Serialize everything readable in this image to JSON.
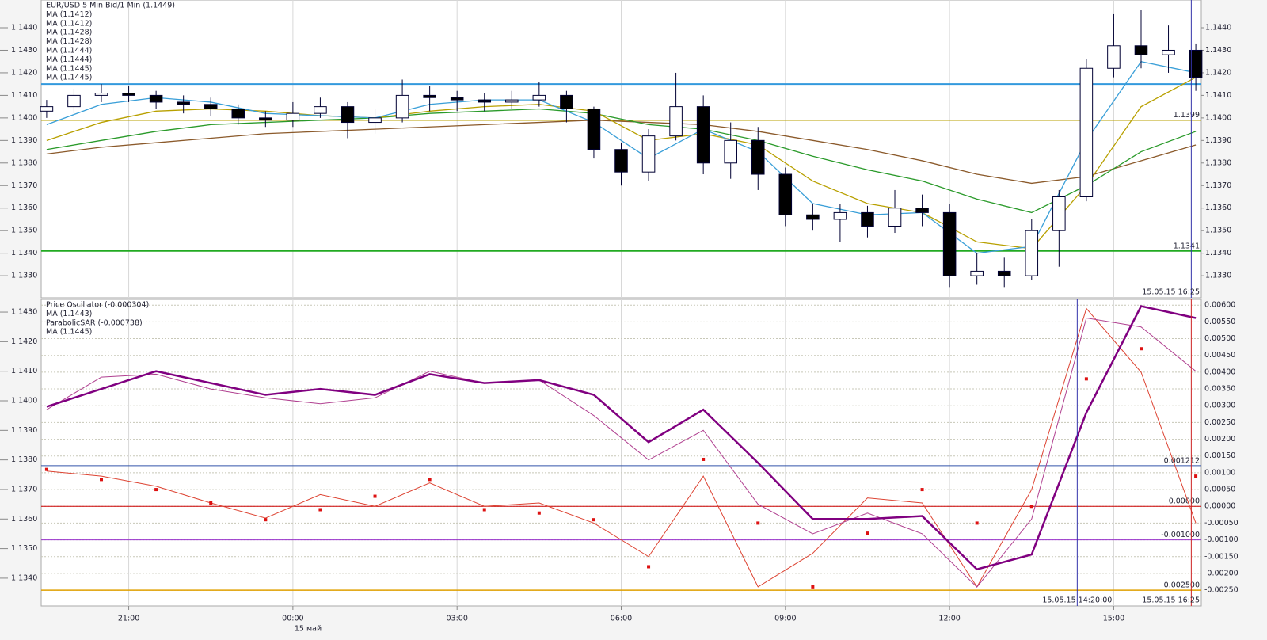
{
  "chart_data": [
    {
      "type": "candlestick",
      "legend": [
        {
          "text": "EUR/USD 5 Min Bid/1 Min (1.1449)",
          "color": "#000066"
        },
        {
          "text": "MA (1.1412)",
          "color": "#b03030"
        },
        {
          "text": "MA (1.1412)",
          "color": "#b06020"
        },
        {
          "text": "MA (1.1428)",
          "color": "#1f8f1f"
        },
        {
          "text": "MA (1.1428)",
          "color": "#2aa02a"
        },
        {
          "text": "MA (1.1444)",
          "color": "#a09000"
        },
        {
          "text": "MA (1.1444)",
          "color": "#b8a800"
        },
        {
          "text": "MA (1.1445)",
          "color": "#2090d0"
        },
        {
          "text": "MA (1.1445)",
          "color": "#3aa8e0"
        }
      ],
      "x": [
        -0.5,
        0,
        0.5,
        1,
        1.5,
        2,
        2.5,
        3,
        3.5,
        4,
        4.5,
        5,
        5.5,
        6,
        6.5,
        7,
        7.5,
        8,
        8.5,
        9,
        9.5,
        10,
        10.5,
        11,
        11.5,
        12,
        12.5,
        13,
        13.5,
        14,
        14.5,
        15,
        15.5,
        16,
        16.5,
        17,
        17.5,
        18,
        18.5,
        19,
        19.5,
        20,
        20.5
      ],
      "open": [
        1.1403,
        1.1405,
        1.141,
        1.1411,
        1.141,
        1.1407,
        1.1406,
        1.1404,
        1.14,
        1.1399,
        1.1402,
        1.1405,
        1.1398,
        1.14,
        1.141,
        1.1409,
        1.1408,
        1.1407,
        1.1408,
        1.141,
        1.1404,
        1.1386,
        1.1376,
        1.1392,
        1.1405,
        1.138,
        1.139,
        1.1375,
        1.1357,
        1.1355,
        1.1358,
        1.1352,
        1.136,
        1.1358,
        1.133,
        1.1332,
        1.133,
        1.135,
        1.1365,
        1.1422,
        1.1432,
        1.1428,
        1.143
      ],
      "high": [
        1.1408,
        1.1413,
        1.1415,
        1.1414,
        1.1412,
        1.141,
        1.1409,
        1.1406,
        1.1403,
        1.1407,
        1.1409,
        1.1407,
        1.1404,
        1.1417,
        1.1414,
        1.1412,
        1.1411,
        1.1412,
        1.1416,
        1.1412,
        1.1405,
        1.1389,
        1.1395,
        1.142,
        1.141,
        1.1398,
        1.1396,
        1.1378,
        1.1362,
        1.1362,
        1.1361,
        1.1368,
        1.1366,
        1.1362,
        1.134,
        1.1338,
        1.1355,
        1.1368,
        1.1426,
        1.1446,
        1.1448,
        1.1441,
        1.1433
      ],
      "low": [
        1.14,
        1.1402,
        1.1407,
        1.1407,
        1.1404,
        1.1402,
        1.1401,
        1.1397,
        1.1396,
        1.1396,
        1.14,
        1.1391,
        1.1393,
        1.1398,
        1.1403,
        1.1403,
        1.1403,
        1.1404,
        1.1405,
        1.1398,
        1.1382,
        1.137,
        1.1372,
        1.139,
        1.1375,
        1.1373,
        1.1368,
        1.1352,
        1.135,
        1.1345,
        1.1347,
        1.1349,
        1.1352,
        1.1325,
        1.1326,
        1.1325,
        1.1328,
        1.1334,
        1.1363,
        1.1418,
        1.1422,
        1.142,
        1.1412
      ],
      "close": [
        1.1405,
        1.141,
        1.1411,
        1.141,
        1.1407,
        1.1406,
        1.1404,
        1.14,
        1.1399,
        1.1402,
        1.1405,
        1.1398,
        1.14,
        1.141,
        1.1409,
        1.1408,
        1.1407,
        1.1408,
        1.141,
        1.1404,
        1.1386,
        1.1376,
        1.1392,
        1.1405,
        1.138,
        1.139,
        1.1375,
        1.1357,
        1.1355,
        1.1358,
        1.1352,
        1.136,
        1.1358,
        1.133,
        1.1332,
        1.133,
        1.135,
        1.1365,
        1.1422,
        1.1432,
        1.1428,
        1.143,
        1.1418
      ],
      "up_color": "#ffffff",
      "down_color": "#000000",
      "candle_outline": "#000033",
      "ma_series": [
        {
          "color": "#8b5a2b",
          "x": [
            -0.5,
            0.5,
            1.5,
            2.5,
            3.5,
            4.5,
            5.5,
            6.5,
            7.5,
            8.5,
            9.5,
            10.5,
            11.5,
            12.5,
            13.5,
            14.5,
            15.5,
            16.5,
            17.5,
            18.5,
            19.5,
            20.5
          ],
          "values": [
            1.1384,
            1.1387,
            1.1389,
            1.1391,
            1.1393,
            1.1394,
            1.1395,
            1.1396,
            1.1397,
            1.1398,
            1.1399,
            1.1398,
            1.1397,
            1.1394,
            1.139,
            1.1386,
            1.1381,
            1.1375,
            1.1371,
            1.1374,
            1.1381,
            1.1388
          ]
        },
        {
          "color": "#2a9a2a",
          "x": [
            -0.5,
            0.5,
            1.5,
            2.5,
            3.5,
            4.5,
            5.5,
            6.5,
            7.5,
            8.5,
            9.5,
            10.5,
            11.5,
            12.5,
            13.5,
            14.5,
            15.5,
            16.5,
            17.5,
            18.5,
            19.5,
            20.5
          ],
          "values": [
            1.1386,
            1.139,
            1.1394,
            1.1397,
            1.1398,
            1.1399,
            1.14,
            1.1402,
            1.1403,
            1.1404,
            1.1402,
            1.1397,
            1.1395,
            1.139,
            1.1383,
            1.1377,
            1.1372,
            1.1364,
            1.1358,
            1.137,
            1.1385,
            1.1394
          ]
        },
        {
          "color": "#b8a000",
          "x": [
            -0.5,
            0.5,
            1.5,
            2.5,
            3.5,
            4.5,
            5.5,
            6.5,
            7.5,
            8.5,
            9.5,
            10.5,
            11.5,
            12.5,
            13.5,
            14.5,
            15.5,
            16.5,
            17.5,
            18.5,
            19.5,
            20.5
          ],
          "values": [
            1.139,
            1.1398,
            1.1403,
            1.1404,
            1.1403,
            1.1401,
            1.14,
            1.1403,
            1.1405,
            1.1406,
            1.1403,
            1.139,
            1.1393,
            1.1388,
            1.1372,
            1.1362,
            1.1358,
            1.1345,
            1.1342,
            1.137,
            1.1405,
            1.1418
          ]
        },
        {
          "color": "#3a9fd8",
          "x": [
            -0.5,
            0.5,
            1.5,
            2.5,
            3.5,
            4.5,
            5.5,
            6.5,
            7.5,
            8.5,
            9.5,
            10.5,
            11.5,
            12.5,
            13.5,
            14.5,
            15.5,
            16.5,
            17.5,
            18.5,
            19.5,
            20.5
          ],
          "values": [
            1.1397,
            1.1406,
            1.1409,
            1.1407,
            1.1402,
            1.1401,
            1.14,
            1.1406,
            1.1408,
            1.1408,
            1.1398,
            1.1382,
            1.1395,
            1.1385,
            1.1362,
            1.1357,
            1.1358,
            1.134,
            1.1343,
            1.139,
            1.1425,
            1.142
          ]
        }
      ],
      "hlines": [
        {
          "value": 1.1415,
          "color": "#3399dd",
          "width": 2
        },
        {
          "value": 1.1399,
          "color": "#b8a000",
          "width": 1.5,
          "label": "1.1399"
        },
        {
          "value": 1.1341,
          "color": "#22aa22",
          "width": 2,
          "label": "1.1341"
        }
      ],
      "vlines": [
        {
          "x": 20.417,
          "color": "#3333aa",
          "label": "15.05.15 16:25"
        }
      ],
      "xlim": [
        -0.6,
        20.6
      ],
      "ylim": [
        1.13202,
        1.14523
      ],
      "yticks": [
        {
          "value": 1.133,
          "label": "1.1330"
        },
        {
          "value": 1.134,
          "label": "1.1340"
        },
        {
          "value": 1.135,
          "label": "1.1350"
        },
        {
          "value": 1.136,
          "label": "1.1360"
        },
        {
          "value": 1.137,
          "label": "1.1370"
        },
        {
          "value": 1.138,
          "label": "1.1380"
        },
        {
          "value": 1.139,
          "label": "1.1390"
        },
        {
          "value": 1.14,
          "label": "1.1400"
        },
        {
          "value": 1.141,
          "label": "1.1410"
        },
        {
          "value": 1.142,
          "label": "1.1420"
        },
        {
          "value": 1.143,
          "label": "1.1430"
        },
        {
          "value": 1.144,
          "label": "1.1440"
        }
      ],
      "grid": [
        "x"
      ]
    },
    {
      "type": "line",
      "legend": [
        {
          "text": "Price Oscillator (-0.000304)",
          "color": "#cc2222"
        },
        {
          "text": "MA (1.1443)",
          "color": "#aa2288"
        },
        {
          "text": "ParabolicSAR (-0.000738)",
          "color": "#cc2222"
        },
        {
          "text": "MA (1.1445)",
          "color": "#800080"
        }
      ],
      "x": [
        -0.5,
        0.5,
        1.5,
        2.5,
        3.5,
        4.5,
        5.5,
        6.5,
        7.5,
        8.5,
        9.5,
        10.5,
        11.5,
        12.5,
        13.5,
        14.5,
        15.5,
        16.5,
        17.5,
        18.5,
        19.5,
        20.5
      ],
      "series": [
        {
          "color": "#dd4433",
          "axis": "y2",
          "style": "line",
          "width": 1,
          "values": [
            0.00105,
            0.0009,
            0.0006,
            0.0001,
            -0.00035,
            0.00035,
            0,
            0.0007,
            0,
            0.0001,
            -0.0005,
            -0.0015,
            0.0009,
            -0.0024,
            -0.0014,
            0.00025,
            0.0001,
            -0.0024,
            0.0005,
            0.0059,
            0.004,
            -0.0005
          ]
        },
        {
          "color": "#b04090",
          "style": "line",
          "width": 1,
          "values": [
            1.1397,
            1.1408,
            1.1409,
            1.1404,
            1.1401,
            1.1399,
            1.1401,
            1.141,
            1.1406,
            1.1407,
            1.1395,
            1.138,
            1.139,
            1.1365,
            1.1355,
            1.1362,
            1.1355,
            1.1337,
            1.136,
            1.1428,
            1.1425,
            1.141
          ]
        },
        {
          "color": "#dd1111",
          "axis": "y2",
          "style": "dots",
          "width": 4,
          "values": [
            0.0011,
            0.0008,
            0.0005,
            0.0001,
            -0.0004,
            -0.0001,
            0.0003,
            0.0008,
            -0.0001,
            -0.0002,
            -0.0004,
            -0.0018,
            0.0014,
            -0.0005,
            -0.0024,
            -0.0008,
            0.0005,
            -0.0005,
            0,
            0.0038,
            0.0047,
            0.0009
          ]
        },
        {
          "color": "#800080",
          "style": "line",
          "width": 2.5,
          "values": [
            1.1398,
            1.1404,
            1.141,
            1.1406,
            1.1402,
            1.1404,
            1.1402,
            1.1409,
            1.1406,
            1.1407,
            1.1402,
            1.1386,
            1.1397,
            1.1379,
            1.136,
            1.136,
            1.1361,
            1.1343,
            1.1348,
            1.1396,
            1.1432,
            1.1428
          ]
        }
      ],
      "hlines": [
        {
          "value": 0.001212,
          "color": "#3355aa",
          "width": 1,
          "label": "0.001212"
        },
        {
          "value": 0,
          "color": "#cc0000",
          "width": 1,
          "label": "0.00000"
        },
        {
          "value": -0.001,
          "color": "#9933cc",
          "width": 1,
          "label": "-0.001000"
        },
        {
          "value": -0.0025,
          "color": "#e0a000",
          "width": 1.5,
          "label": "-0.002500"
        }
      ],
      "vlines": [
        {
          "x": 18.333,
          "color": "#3333aa",
          "label": "15.05.15 14:20:00"
        },
        {
          "x": 20.417,
          "color": "#cc2222",
          "label": "15.05.15 16:25"
        }
      ],
      "xlim": [
        -0.6,
        20.6
      ],
      "xticks": [
        {
          "value": 1,
          "label": "21:00"
        },
        {
          "value": 4,
          "label": "00:00"
        },
        {
          "value": 7,
          "label": "03:00"
        },
        {
          "value": 10,
          "label": "06:00"
        },
        {
          "value": 13,
          "label": "09:00"
        },
        {
          "value": 16,
          "label": "12:00"
        },
        {
          "value": 19,
          "label": "15:00"
        }
      ],
      "date_label": "15 май",
      "ylim": [
        1.13306,
        1.14343
      ],
      "yticks": [
        {
          "value": 1.134,
          "label": "1.1340"
        },
        {
          "value": 1.135,
          "label": "1.1350"
        },
        {
          "value": 1.136,
          "label": "1.1360"
        },
        {
          "value": 1.137,
          "label": "1.1370"
        },
        {
          "value": 1.138,
          "label": "1.1380"
        },
        {
          "value": 1.139,
          "label": "1.1390"
        },
        {
          "value": 1.14,
          "label": "1.1400"
        },
        {
          "value": 1.141,
          "label": "1.1410"
        },
        {
          "value": 1.142,
          "label": "1.1420"
        },
        {
          "value": 1.143,
          "label": "1.1430"
        }
      ],
      "y2lim": [
        -0.00297,
        0.00617
      ],
      "y2ticks": [
        {
          "value": 0.006,
          "label": "0.00600"
        },
        {
          "value": 0.0055,
          "label": "0.00550"
        },
        {
          "value": 0.005,
          "label": "0.00500"
        },
        {
          "value": 0.0045,
          "label": "0.00450"
        },
        {
          "value": 0.004,
          "label": "0.00400"
        },
        {
          "value": 0.0035,
          "label": "0.00350"
        },
        {
          "value": 0.003,
          "label": "0.00300"
        },
        {
          "value": 0.0025,
          "label": "0.00250"
        },
        {
          "value": 0.002,
          "label": "0.00200"
        },
        {
          "value": 0.0015,
          "label": "0.00150"
        },
        {
          "value": 0.001,
          "label": "0.00100"
        },
        {
          "value": 0.0005,
          "label": "0.00050"
        },
        {
          "value": 0,
          "label": "0.00000"
        },
        {
          "value": -0.0005,
          "label": "-0.00050"
        },
        {
          "value": -0.001,
          "label": "-0.00100"
        },
        {
          "value": -0.0015,
          "label": "-0.00150"
        },
        {
          "value": -0.002,
          "label": "-0.00200"
        },
        {
          "value": -0.0025,
          "label": "-0.00250"
        }
      ],
      "grid": [
        "x",
        "y2"
      ]
    }
  ]
}
